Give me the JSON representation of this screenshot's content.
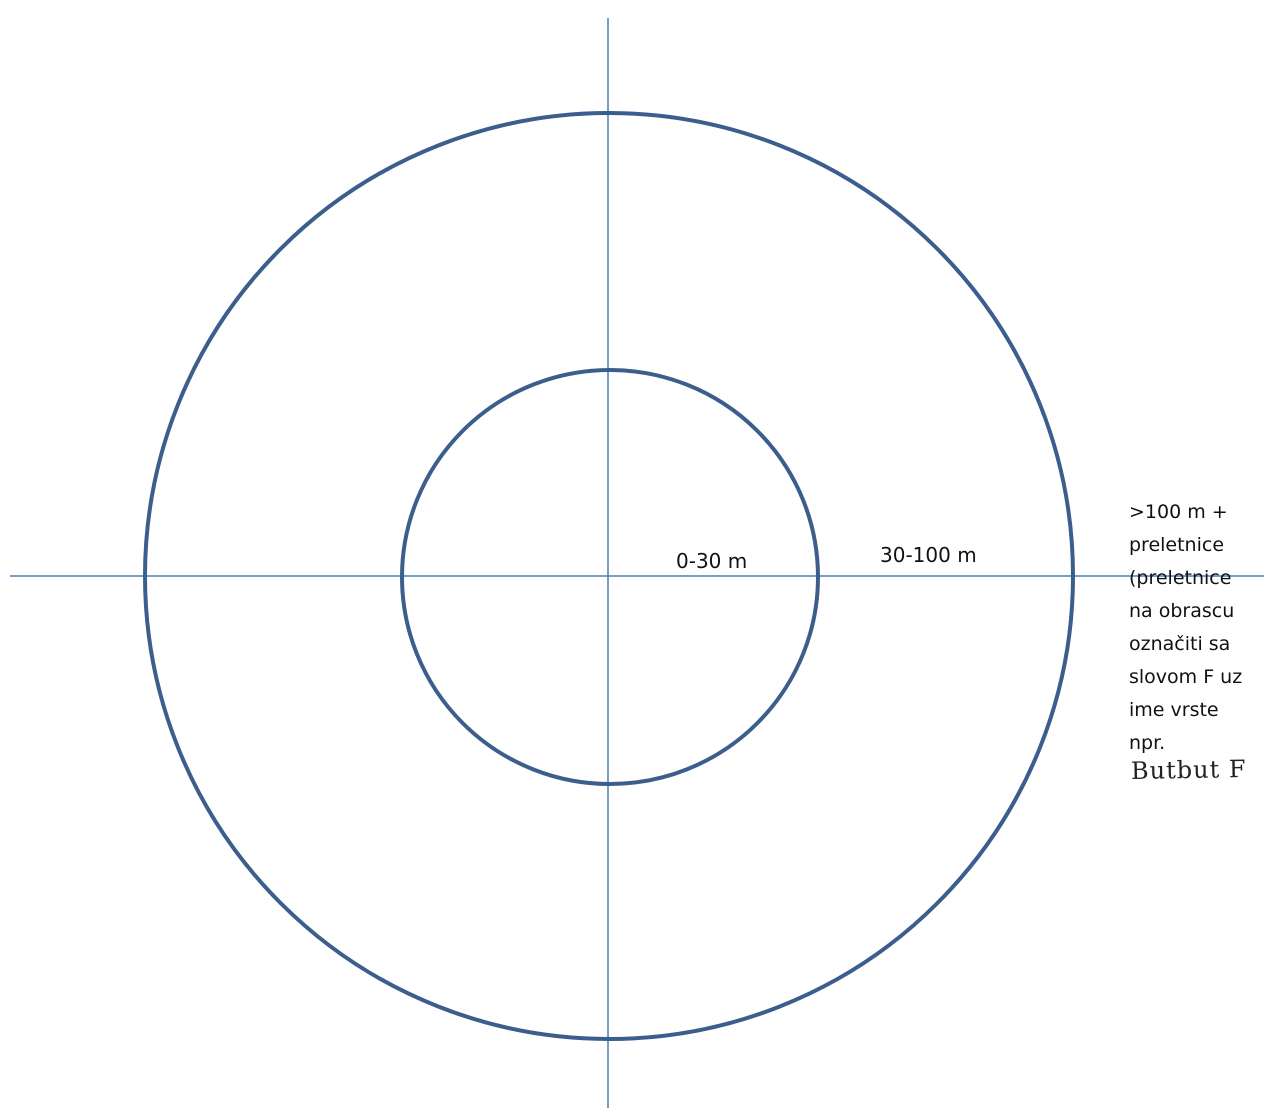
{
  "diagram": {
    "zones": [
      {
        "label": "0-30 m"
      },
      {
        "label": "30-100 m"
      }
    ],
    "outer_zone_note": [
      ">100 m +",
      "preletnice",
      "(preletnice",
      "na obrascu",
      "označiti sa",
      "slovom F uz",
      "ime vrste",
      "npr."
    ],
    "handwritten_example": "Butbut F",
    "colors": {
      "circles": "#3c5e8d",
      "axes": "#4f7bb8",
      "text": "#111111"
    }
  }
}
